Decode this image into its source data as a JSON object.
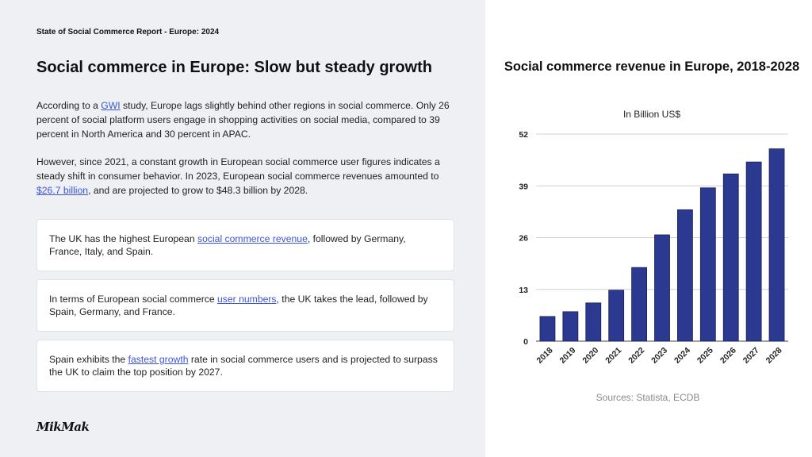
{
  "report_label": "State of Social Commerce Report - Europe: 2024",
  "headline": "Social commerce in Europe: Slow but steady growth",
  "intro": {
    "p1_before": "According to a ",
    "p1_link": "GWI",
    "p1_after": " study, Europe lags slightly behind other regions in social commerce. Only 26 percent of social platform users engage in shopping activities on social media, compared to 39 percent in North America and 30 percent in APAC.",
    "p2_before": "However, since 2021, a constant growth in European social commerce user figures indicates a steady shift in consumer behavior. In 2023, European social commerce revenues amounted to ",
    "p2_link": "$26.7 billion",
    "p2_after": ", and are projected to grow to $48.3 billion by 2028."
  },
  "cards": [
    {
      "before": "The UK has the highest European ",
      "link": "social commerce revenue",
      "after": ", followed by Germany, France, Italy, and Spain."
    },
    {
      "before": "In terms of European social commerce ",
      "link": "user numbers",
      "after": ", the UK takes the lead, followed by Spain, Germany, and France."
    },
    {
      "before": "Spain exhibits the ",
      "link": "fastest growth",
      "after": " rate in social commerce users and is projected to surpass the UK to claim the top position by 2027."
    }
  ],
  "logo_text": "MikMak",
  "colors": {
    "bar": "#2b3990",
    "link": "#3b55d9",
    "left_bg": "#eef0f3"
  },
  "chart_data": {
    "type": "bar",
    "title": "Social commerce revenue in Europe, 2018-2028",
    "subtitle": "In Billion US$",
    "categories": [
      "2018",
      "2019",
      "2020",
      "2021",
      "2022",
      "2023",
      "2024",
      "2025",
      "2026",
      "2027",
      "2028"
    ],
    "values": [
      6.2,
      7.4,
      9.6,
      12.8,
      18.5,
      26.7,
      33.0,
      38.5,
      42.0,
      45.0,
      48.3
    ],
    "yticks": [
      0,
      13,
      26,
      39,
      52
    ],
    "ylim": [
      0,
      52
    ],
    "grid": true,
    "source": "Sources: Statista, ECDB"
  }
}
